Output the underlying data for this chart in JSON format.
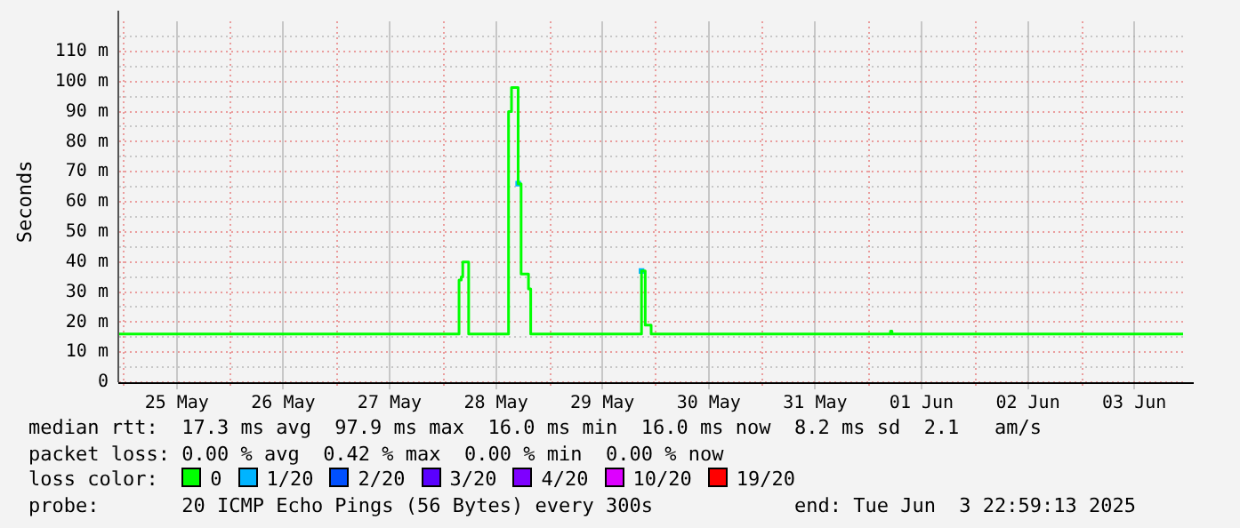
{
  "chart_data": {
    "type": "step",
    "ylabel": "Seconds",
    "legend_title": "loss color:",
    "legend": "bottom",
    "grid": true,
    "xlim": [
      "2025-05-24T23:00",
      "2025-06-03T23:00"
    ],
    "xticks": [
      {
        "value": "2025-05-25T12:00",
        "label": "25 May"
      },
      {
        "value": "2025-05-26T12:00",
        "label": "26 May"
      },
      {
        "value": "2025-05-27T12:00",
        "label": "27 May"
      },
      {
        "value": "2025-05-28T12:00",
        "label": "28 May"
      },
      {
        "value": "2025-05-29T12:00",
        "label": "29 May"
      },
      {
        "value": "2025-05-30T12:00",
        "label": "30 May"
      },
      {
        "value": "2025-05-31T12:00",
        "label": "31 May"
      },
      {
        "value": "2025-06-01T12:00",
        "label": "01 Jun"
      },
      {
        "value": "2025-06-02T12:00",
        "label": "02 Jun"
      },
      {
        "value": "2025-06-03T12:00",
        "label": "03 Jun"
      }
    ],
    "ylim": [
      0,
      120
    ],
    "yticks": [
      0,
      {
        "value": 5,
        "label": null
      },
      {
        "value": 10,
        "label": "10 m"
      },
      {
        "value": 15,
        "label": null
      },
      {
        "value": 20,
        "label": "20 m"
      },
      {
        "value": 25,
        "label": null
      },
      {
        "value": 30,
        "label": "30 m"
      },
      {
        "value": 35,
        "label": null
      },
      {
        "value": 40,
        "label": "40 m"
      },
      {
        "value": 45,
        "label": null
      },
      {
        "value": 50,
        "label": "50 m"
      },
      {
        "value": 55,
        "label": null
      },
      {
        "value": 60,
        "label": "60 m"
      },
      {
        "value": 65,
        "label": null
      },
      {
        "value": 70,
        "label": "70 m"
      },
      {
        "value": 75,
        "label": null
      },
      {
        "value": 80,
        "label": "80 m"
      },
      {
        "value": 85,
        "label": null
      },
      {
        "value": 90,
        "label": "90 m"
      },
      {
        "value": 95,
        "label": null
      },
      {
        "value": 100,
        "label": "100 m"
      },
      {
        "value": 105,
        "label": null
      },
      {
        "value": 110,
        "label": "110 m"
      },
      {
        "value": 115,
        "label": null
      }
    ],
    "series": [
      {
        "name": "0",
        "color": "#00ff00",
        "x": [
          "2025-05-24T23:00",
          "2025-05-28T03:40",
          "2025-05-28T04:10",
          "2025-05-28T04:30",
          "2025-05-28T05:50",
          "2025-05-28T14:50",
          "2025-05-28T15:30",
          "2025-05-28T17:00",
          "2025-05-28T17:40",
          "2025-05-28T19:20",
          "2025-05-28T19:50",
          "2025-05-29T20:50",
          "2025-05-29T21:40",
          "2025-05-29T23:00",
          "2025-06-01T05:00",
          "2025-06-01T05:20",
          "2025-06-03T23:00"
        ],
        "values": [
          16,
          34,
          35,
          40,
          16,
          90,
          98,
          66,
          36,
          31,
          16,
          37,
          19,
          16,
          17,
          16,
          16
        ]
      },
      {
        "name": "1/20",
        "type": "scatter",
        "color": "#00b4ff",
        "x": [
          "2025-05-28T17:00",
          "2025-05-29T20:50"
        ],
        "values": [
          66,
          37
        ]
      },
      {
        "name": "2/20",
        "type": "scatter",
        "color": "#0050ff"
      },
      {
        "name": "3/20",
        "type": "scatter",
        "color": "#5a00ff"
      },
      {
        "name": "4/20",
        "type": "scatter",
        "color": "#7e00ff"
      },
      {
        "name": "10/20",
        "type": "scatter",
        "color": "#dd00ff"
      },
      {
        "name": "19/20",
        "type": "scatter",
        "color": "#ff0000"
      }
    ],
    "annotations": [
      "median rtt:  17.3 ms avg  97.9 ms max  16.0 ms min  16.0 ms now  8.2 ms sd  2.1   am/s",
      "packet loss: 0.00 % avg  0.42 % max  0.00 % min  0.00 % now",
      "probe:       20 ICMP Echo Pings (56 Bytes) every 300s            end: Tue Jun  3 22:59:13 2025"
    ]
  }
}
